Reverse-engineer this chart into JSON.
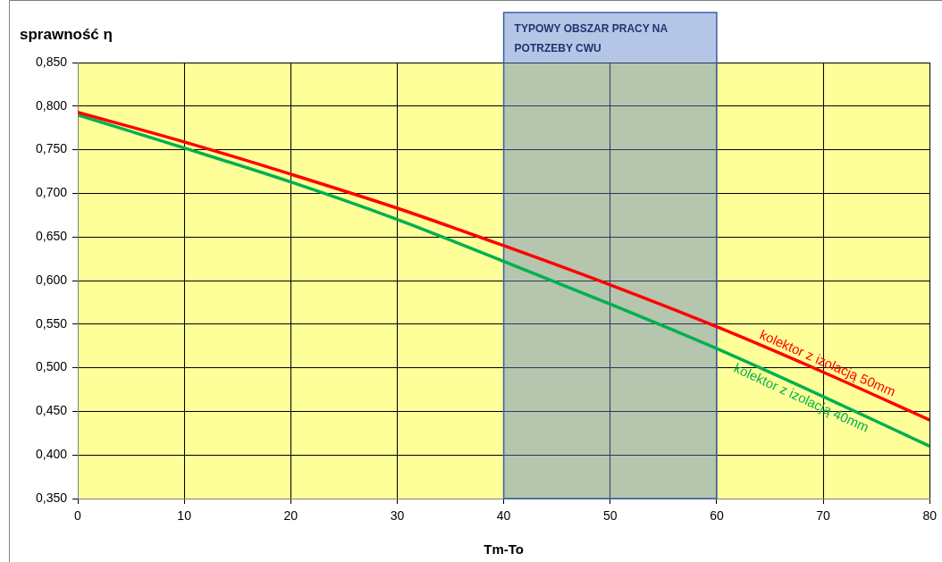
{
  "chart_data": {
    "type": "line",
    "ylabel": "sprawność η",
    "xlabel": "Tm-To",
    "x": [
      0,
      10,
      20,
      30,
      40,
      50,
      60,
      70,
      80
    ],
    "series": [
      {
        "name": "kolektor z izolacją 50mm",
        "color": "#ff0000",
        "values": [
          0.793,
          0.759,
          0.722,
          0.683,
          0.64,
          0.595,
          0.547,
          0.495,
          0.44
        ]
      },
      {
        "name": "kolektor z izolacją 40mm",
        "color": "#00b050",
        "values": [
          0.79,
          0.752,
          0.713,
          0.67,
          0.622,
          0.573,
          0.522,
          0.467,
          0.41
        ]
      }
    ],
    "xlim": [
      0,
      80
    ],
    "xticks": [
      0,
      10,
      20,
      30,
      40,
      50,
      60,
      70,
      80
    ],
    "ylim": [
      0.35,
      0.85
    ],
    "yticks": [
      {
        "value": 0.35,
        "label": "0,350"
      },
      {
        "value": 0.4,
        "label": "0,400"
      },
      {
        "value": 0.45,
        "label": "0,450"
      },
      {
        "value": 0.5,
        "label": "0,500"
      },
      {
        "value": 0.55,
        "label": "0,550"
      },
      {
        "value": 0.6,
        "label": "0,600"
      },
      {
        "value": 0.65,
        "label": "0,650"
      },
      {
        "value": 0.7,
        "label": "0,700"
      },
      {
        "value": 0.75,
        "label": "0,750"
      },
      {
        "value": 0.8,
        "label": "0,800"
      },
      {
        "value": 0.85,
        "label": "0,850"
      }
    ],
    "bands": [
      {
        "axis": "x",
        "from": 40,
        "to": 60,
        "label": "TYPOWY OBSZAR PRACY NA POTRZEBY CWU",
        "color": "#5b7fc8"
      }
    ],
    "grid": true,
    "legend": false,
    "marker": "none",
    "line_style": "solid"
  }
}
